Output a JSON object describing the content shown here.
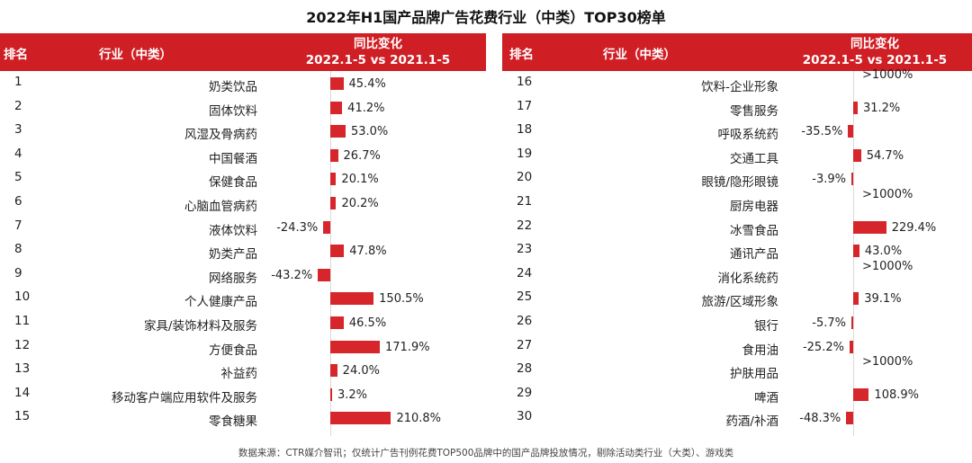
{
  "title": "2022年H1国产品牌广告花费行业（中类）TOP30榜单",
  "header": {
    "rank": "排名",
    "industry": "行业（中类）",
    "change_line1": "同比变化",
    "change_line2": "2022.1-5 vs 2021.1-5"
  },
  "source": "数据来源：CTR媒介智讯；仅统计广告刊例花费TOP500品牌中的国产品牌投放情况，剔除活动类行业（大类）、游戏类",
  "colors": {
    "header_bg": "#cf1f25",
    "bar": "#d7262b"
  },
  "chart_data": [
    {
      "type": "bar",
      "orientation": "horizontal",
      "categories": [
        "奶类饮品",
        "固体饮料",
        "风湿及骨病药",
        "中国餐酒",
        "保健食品",
        "心脑血管病药",
        "液体饮料",
        "奶类产品",
        "网络服务",
        "个人健康产品",
        "家具/装饰材料及服务",
        "方便食品",
        "补益药",
        "移动客户端应用软件及服务",
        "零食糖果"
      ],
      "ranks": [
        "1",
        "2",
        "3",
        "4",
        "5",
        "6",
        "7",
        "8",
        "9",
        "10",
        "11",
        "12",
        "13",
        "14",
        "15"
      ],
      "values": [
        45.4,
        41.2,
        53.0,
        26.7,
        20.1,
        20.2,
        -24.3,
        47.8,
        -43.2,
        150.5,
        46.5,
        171.9,
        24.0,
        3.2,
        210.8
      ],
      "labels": [
        "45.4%",
        "41.2%",
        "53.0%",
        "26.7%",
        "20.1%",
        "20.2%",
        "-24.3%",
        "47.8%",
        "-43.2%",
        "150.5%",
        "46.5%",
        "171.9%",
        "24.0%",
        "3.2%",
        "210.8%"
      ]
    },
    {
      "type": "bar",
      "orientation": "horizontal",
      "categories": [
        "饮料-企业形象",
        "零售服务",
        "呼吸系统药",
        "交通工具",
        "眼镜/隐形眼镜",
        "厨房电器",
        "冰雪食品",
        "通讯产品",
        "消化系统药",
        "旅游/区域形象",
        "银行",
        "食用油",
        "护肤用品",
        "啤酒",
        "药酒/补酒"
      ],
      "ranks": [
        "16",
        "17",
        "18",
        "19",
        "20",
        "21",
        "22",
        "23",
        "24",
        "25",
        "26",
        "27",
        "28",
        "29",
        "30"
      ],
      "values": [
        null,
        31.2,
        -35.5,
        54.7,
        -3.9,
        null,
        229.4,
        43.0,
        null,
        39.1,
        -5.7,
        -25.2,
        null,
        108.9,
        -48.3
      ],
      "labels": [
        ">1000%",
        "31.2%",
        "-35.5%",
        "54.7%",
        "-3.9%",
        ">1000%",
        "229.4%",
        "43.0%",
        ">1000%",
        "39.1%",
        "-5.7%",
        "-25.2%",
        ">1000%",
        "108.9%",
        "-48.3%"
      ]
    }
  ]
}
